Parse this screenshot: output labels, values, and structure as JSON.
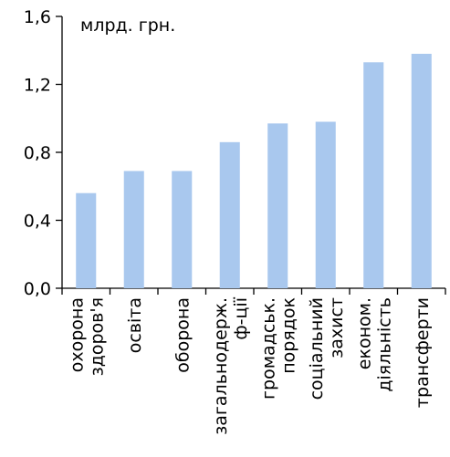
{
  "chart_data": {
    "type": "bar",
    "unit_label": "млрд. грн.",
    "categories": [
      [
        "охорона",
        "здоров'я"
      ],
      [
        "освіта"
      ],
      [
        "оборона"
      ],
      [
        "загальнодерж.",
        "ф-ції"
      ],
      [
        "громадськ.",
        "порядок"
      ],
      [
        "соціальний",
        "захист"
      ],
      [
        "економ.",
        "діяльність"
      ],
      [
        "трансферти"
      ]
    ],
    "values": [
      0.56,
      0.69,
      0.69,
      0.86,
      0.97,
      0.98,
      1.33,
      1.38
    ],
    "yticks": [
      "0,0",
      "0,4",
      "0,8",
      "1,2",
      "1,6"
    ],
    "ylim": [
      0,
      1.6
    ],
    "bar_color": "#a9c8ee",
    "axis_color": "#000000"
  }
}
